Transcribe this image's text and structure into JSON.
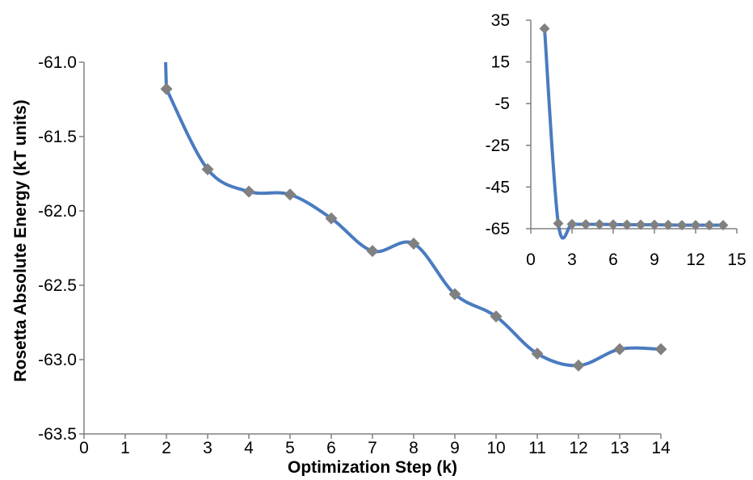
{
  "chart_data": [
    {
      "type": "line",
      "title": "",
      "xlabel": "Optimization Step (k)",
      "ylabel": "Rosetta Absolute Energy (kT units)",
      "xlim": [
        0,
        14
      ],
      "ylim": [
        -63.5,
        -61.0
      ],
      "x_ticks": [
        "0",
        "1",
        "2",
        "3",
        "4",
        "5",
        "6",
        "7",
        "8",
        "9",
        "10",
        "11",
        "12",
        "13",
        "14"
      ],
      "y_ticks": [
        "-61.0",
        "-61.5",
        "-62.0",
        "-62.5",
        "-63.0",
        "-63.5"
      ],
      "line_color": "#4a7bc0",
      "marker_color": "#808080",
      "marker": "diamond",
      "series": [
        {
          "x": [
            2,
            3,
            4,
            5,
            6,
            7,
            8,
            9,
            10,
            11,
            12,
            13,
            14
          ],
          "y": [
            -61.18,
            -61.72,
            -61.87,
            -61.89,
            -62.05,
            -62.27,
            -62.22,
            -62.56,
            -62.71,
            -62.96,
            -63.04,
            -62.93,
            -62.93
          ]
        }
      ]
    },
    {
      "type": "line",
      "title": "",
      "xlabel": "",
      "ylabel": "",
      "xlim": [
        0,
        15
      ],
      "ylim": [
        -65,
        35
      ],
      "x_ticks": [
        "0",
        "3",
        "6",
        "9",
        "12",
        "15"
      ],
      "y_ticks": [
        "35",
        "15",
        "-5",
        "-25",
        "-45",
        "-65"
      ],
      "line_color": "#4a7bc0",
      "marker_color": "#808080",
      "marker": "diamond",
      "series": [
        {
          "x": [
            1,
            2,
            3,
            4,
            5,
            6,
            7,
            8,
            9,
            10,
            11,
            12,
            13,
            14
          ],
          "y": [
            31,
            -62.5,
            -62.8,
            -62.9,
            -62.9,
            -63.0,
            -63.1,
            -63.1,
            -63.1,
            -63.2,
            -63.3,
            -63.3,
            -63.3,
            -63.3
          ]
        }
      ]
    }
  ]
}
